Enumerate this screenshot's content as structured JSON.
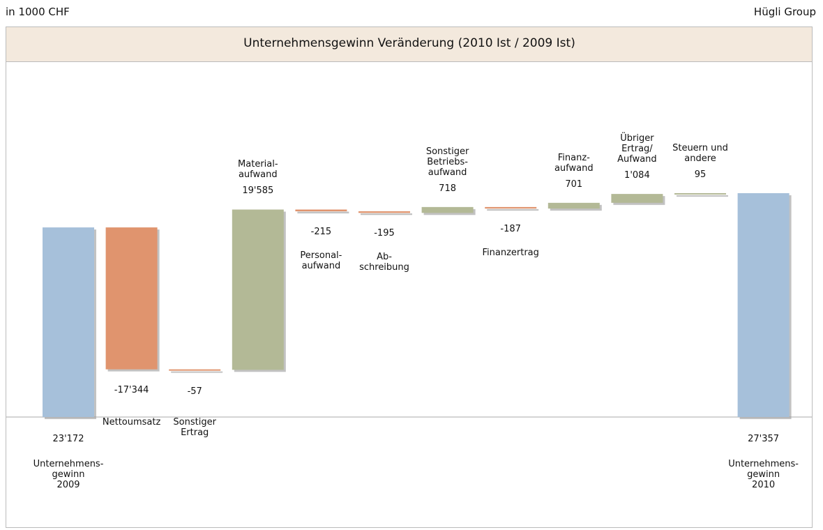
{
  "chart_data": {
    "type": "waterfall",
    "title": "Unternehmensgewinn Veränderung (2010 Ist / 2009 Ist)",
    "subtitle": "in 1000 CHF",
    "source": "Hügli Group",
    "categories": [
      "Unternehmens-\ngewinn\n2009",
      "Nettoumsatz",
      "Sonstiger\nErtrag",
      "Material-\naufwand",
      "Personal-\naufwand",
      "Ab-\nschreibung",
      "Sonstiger\nBetriebs-\naufwand",
      "Finanzertrag",
      "Finanz-\naufwand",
      "Übriger\nErtrag/\nAufwand",
      "Steuern und\nandere",
      "Unternehmens-\ngewinn\n2010"
    ],
    "values": [
      23172,
      -17344,
      -57,
      19585,
      -215,
      -195,
      718,
      -187,
      701,
      1084,
      95,
      27357
    ],
    "value_labels": [
      "23'172",
      "-17'344",
      "-57",
      "19'585",
      "-215",
      "-195",
      "718",
      "-187",
      "701",
      "1'084",
      "95",
      "27'357"
    ],
    "totals": [
      0,
      11
    ],
    "colors": {
      "total": "#a6c0da",
      "increase": "#b3b996",
      "decrease": "#e0946e"
    }
  }
}
